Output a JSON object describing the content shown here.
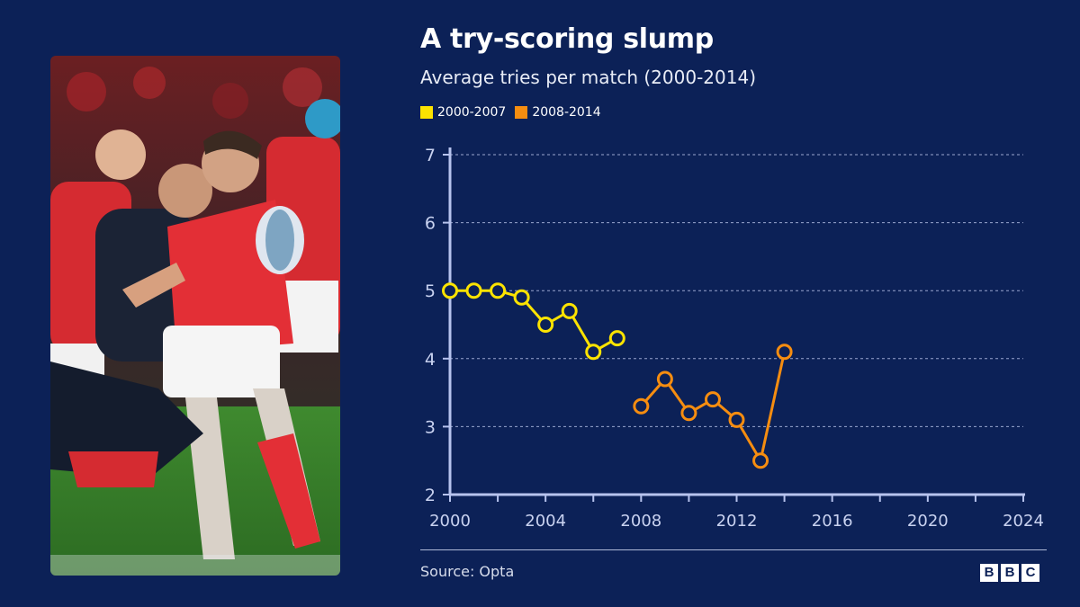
{
  "header": {
    "title": "A try-scoring slump",
    "subtitle": "Average tries per match (2000-2014)"
  },
  "legend": [
    {
      "label": "2000-2007",
      "color": "#fce300"
    },
    {
      "label": "2008-2014",
      "color": "#f68d10"
    }
  ],
  "photo": {
    "icon": "rugby-player-photo"
  },
  "footer": {
    "source": "Source: Opta",
    "logo": [
      "B",
      "B",
      "C"
    ]
  },
  "chart_data": {
    "type": "line",
    "title": "A try-scoring slump",
    "subtitle": "Average tries per match (2000-2014)",
    "xlabel": "",
    "ylabel": "",
    "xlim": [
      2000,
      2024
    ],
    "ylim": [
      2,
      7
    ],
    "xticks": [
      2000,
      2004,
      2008,
      2012,
      2016,
      2020,
      2024
    ],
    "yticks": [
      2,
      3,
      4,
      5,
      6,
      7
    ],
    "grid": "horizontal dashed",
    "legend_position": "top-left",
    "series": [
      {
        "name": "2000-2007",
        "color": "#fce300",
        "x": [
          2000,
          2001,
          2002,
          2003,
          2004,
          2005,
          2006,
          2007
        ],
        "values": [
          5.0,
          5.0,
          5.0,
          4.9,
          4.5,
          4.7,
          4.1,
          4.3
        ]
      },
      {
        "name": "2008-2014",
        "color": "#f68d10",
        "x": [
          2008,
          2009,
          2010,
          2011,
          2012,
          2013,
          2014
        ],
        "values": [
          3.3,
          3.7,
          3.2,
          3.4,
          3.1,
          2.5,
          4.1
        ]
      }
    ]
  }
}
